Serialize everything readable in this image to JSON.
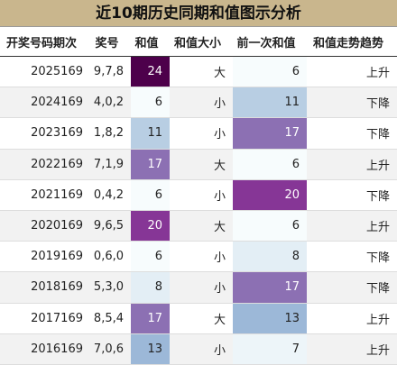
{
  "header": {
    "title": "近10期历史同期和值图示分析"
  },
  "table": {
    "columns": [
      "开奖号码期次",
      "奖号",
      "和值",
      "和值大小",
      "前一次和值",
      "和值走势趋势"
    ],
    "rows": [
      [
        "2025169",
        "9,7,8",
        24,
        "大",
        6,
        "上升"
      ],
      [
        "2024169",
        "4,0,2",
        6,
        "小",
        11,
        "下降"
      ],
      [
        "2023169",
        "1,8,2",
        11,
        "小",
        17,
        "下降"
      ],
      [
        "2022169",
        "7,1,9",
        17,
        "大",
        6,
        "上升"
      ],
      [
        "2021169",
        "0,4,2",
        6,
        "小",
        20,
        "下降"
      ],
      [
        "2020169",
        "9,6,5",
        20,
        "大",
        6,
        "上升"
      ],
      [
        "2019169",
        "0,6,0",
        6,
        "小",
        8,
        "下降"
      ],
      [
        "2018169",
        "5,3,0",
        8,
        "小",
        17,
        "下降"
      ],
      [
        "2017169",
        "8,5,4",
        17,
        "大",
        13,
        "上升"
      ],
      [
        "2016169",
        "7,0,6",
        13,
        "小",
        7,
        "上升"
      ]
    ]
  }
}
